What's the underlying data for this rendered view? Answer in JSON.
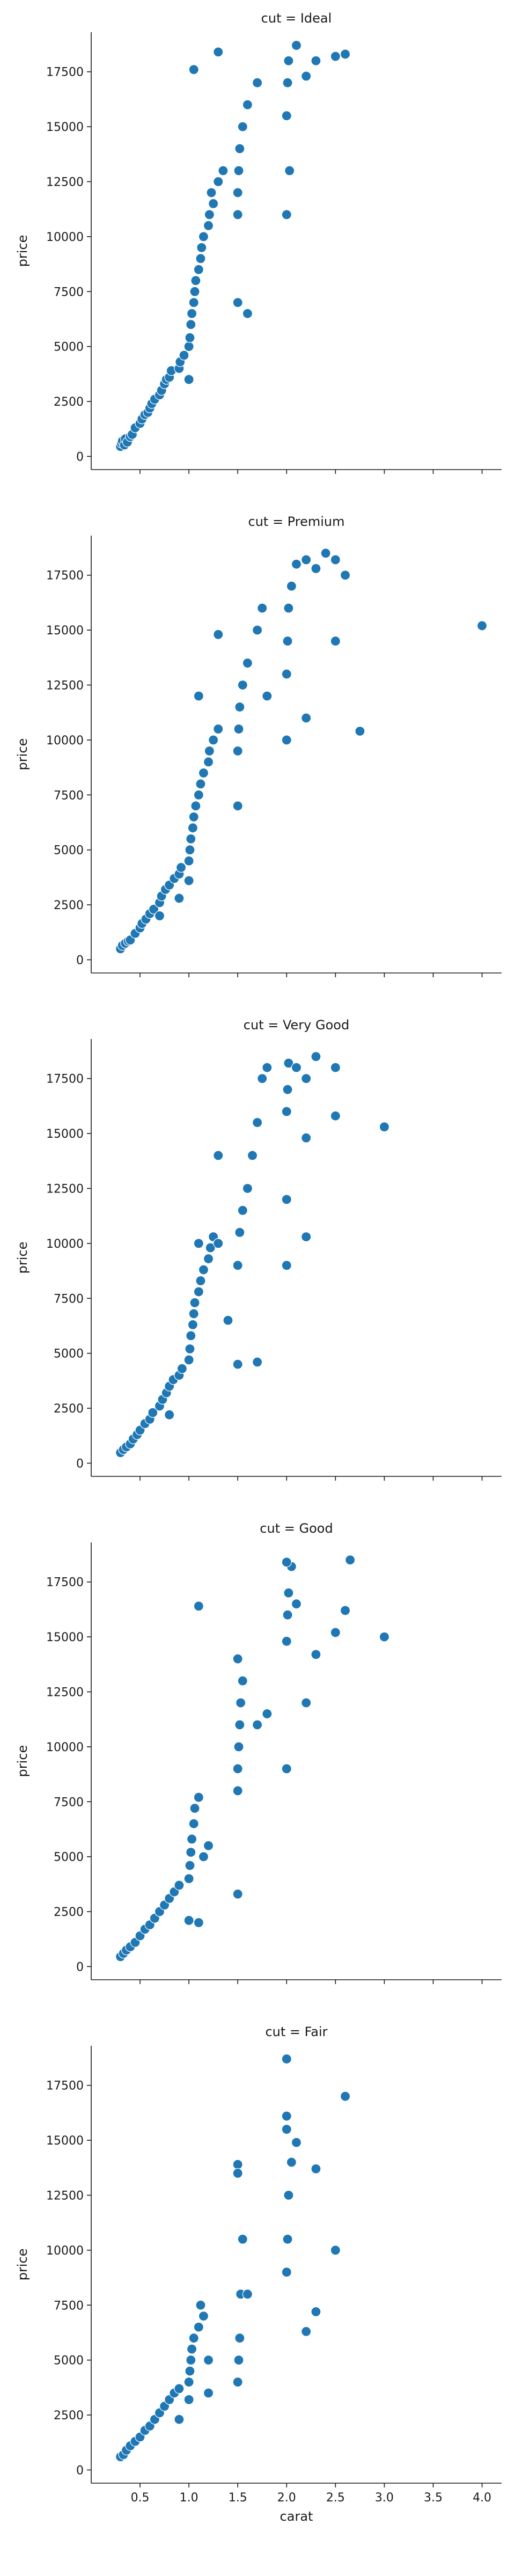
{
  "chart_data": {
    "type": "scatter",
    "facet_variable": "cut",
    "title_prefix": "cut = ",
    "xlabel": "carat",
    "ylabel": "price",
    "xlim": [
      0.0,
      4.2
    ],
    "ylim": [
      -600,
      19300
    ],
    "xticks": [
      0.5,
      1.0,
      1.5,
      2.0,
      2.5,
      3.0,
      3.5,
      4.0
    ],
    "xtick_labels": [
      "0.5",
      "1.0",
      "1.5",
      "2.0",
      "2.5",
      "3.0",
      "3.5",
      "4.0"
    ],
    "yticks": [
      0,
      2500,
      5000,
      7500,
      10000,
      12500,
      15000,
      17500
    ],
    "ytick_labels": [
      "0",
      "2500",
      "5000",
      "7500",
      "10000",
      "12500",
      "15000",
      "17500"
    ],
    "color": "#1f77b4",
    "shared_x_axis": true,
    "x_tick_labels_on_bottom_only": true,
    "grid": false,
    "facets": [
      {
        "title": "cut = Ideal",
        "points": [
          [
            0.3,
            450
          ],
          [
            0.31,
            600
          ],
          [
            0.32,
            700
          ],
          [
            0.34,
            520
          ],
          [
            0.35,
            800
          ],
          [
            0.37,
            650
          ],
          [
            0.4,
            900
          ],
          [
            0.42,
            1000
          ],
          [
            0.45,
            1300
          ],
          [
            0.5,
            1500
          ],
          [
            0.52,
            1700
          ],
          [
            0.55,
            1900
          ],
          [
            0.58,
            2000
          ],
          [
            0.6,
            2200
          ],
          [
            0.62,
            2400
          ],
          [
            0.65,
            2600
          ],
          [
            0.7,
            2800
          ],
          [
            0.72,
            3000
          ],
          [
            0.75,
            3300
          ],
          [
            0.77,
            3500
          ],
          [
            0.8,
            3600
          ],
          [
            0.82,
            3900
          ],
          [
            0.9,
            4000
          ],
          [
            0.91,
            4300
          ],
          [
            0.95,
            4600
          ],
          [
            1.0,
            5000
          ],
          [
            1.01,
            5400
          ],
          [
            1.02,
            6000
          ],
          [
            1.03,
            6500
          ],
          [
            1.05,
            7000
          ],
          [
            1.06,
            7500
          ],
          [
            1.07,
            8000
          ],
          [
            1.1,
            8500
          ],
          [
            1.12,
            9000
          ],
          [
            1.13,
            9500
          ],
          [
            1.15,
            10000
          ],
          [
            1.2,
            10500
          ],
          [
            1.21,
            11000
          ],
          [
            1.25,
            11500
          ],
          [
            1.23,
            12000
          ],
          [
            1.3,
            12500
          ],
          [
            1.35,
            13000
          ],
          [
            1.5,
            11000
          ],
          [
            1.5,
            12000
          ],
          [
            1.51,
            13000
          ],
          [
            1.52,
            14000
          ],
          [
            1.55,
            15000
          ],
          [
            1.6,
            16000
          ],
          [
            1.7,
            17000
          ],
          [
            1.05,
            17600
          ],
          [
            1.3,
            18400
          ],
          [
            2.0,
            15500
          ],
          [
            2.01,
            17000
          ],
          [
            2.02,
            18000
          ],
          [
            2.1,
            18700
          ],
          [
            2.2,
            17300
          ],
          [
            2.3,
            18000
          ],
          [
            2.5,
            18200
          ],
          [
            2.6,
            18300
          ],
          [
            2.0,
            11000
          ],
          [
            2.03,
            13000
          ],
          [
            1.5,
            7000
          ],
          [
            1.6,
            6500
          ],
          [
            1.0,
            3500
          ]
        ]
      },
      {
        "title": "cut = Premium",
        "points": [
          [
            0.3,
            500
          ],
          [
            0.32,
            650
          ],
          [
            0.35,
            750
          ],
          [
            0.38,
            850
          ],
          [
            0.4,
            900
          ],
          [
            0.45,
            1200
          ],
          [
            0.5,
            1450
          ],
          [
            0.52,
            1650
          ],
          [
            0.56,
            1850
          ],
          [
            0.6,
            2100
          ],
          [
            0.64,
            2300
          ],
          [
            0.7,
            2600
          ],
          [
            0.72,
            2900
          ],
          [
            0.76,
            3200
          ],
          [
            0.8,
            3400
          ],
          [
            0.85,
            3700
          ],
          [
            0.9,
            3900
          ],
          [
            0.92,
            4200
          ],
          [
            1.0,
            4500
          ],
          [
            1.01,
            5000
          ],
          [
            1.02,
            5500
          ],
          [
            1.04,
            6000
          ],
          [
            1.05,
            6500
          ],
          [
            1.07,
            7000
          ],
          [
            1.1,
            7500
          ],
          [
            1.12,
            8000
          ],
          [
            1.15,
            8500
          ],
          [
            1.2,
            9000
          ],
          [
            1.21,
            9500
          ],
          [
            1.25,
            10000
          ],
          [
            1.3,
            10500
          ],
          [
            1.5,
            9500
          ],
          [
            1.51,
            10500
          ],
          [
            1.52,
            11500
          ],
          [
            1.55,
            12500
          ],
          [
            1.6,
            13500
          ],
          [
            1.7,
            15000
          ],
          [
            1.75,
            16000
          ],
          [
            2.0,
            13000
          ],
          [
            2.01,
            14500
          ],
          [
            2.02,
            16000
          ],
          [
            2.05,
            17000
          ],
          [
            2.1,
            18000
          ],
          [
            2.2,
            18200
          ],
          [
            2.3,
            17800
          ],
          [
            2.4,
            18500
          ],
          [
            2.5,
            18200
          ],
          [
            2.6,
            17500
          ],
          [
            2.75,
            10400
          ],
          [
            4.0,
            15200
          ],
          [
            2.0,
            10000
          ],
          [
            2.2,
            11000
          ],
          [
            1.5,
            7000
          ],
          [
            1.3,
            14800
          ],
          [
            1.1,
            12000
          ],
          [
            1.0,
            3600
          ],
          [
            0.9,
            2800
          ],
          [
            0.7,
            2000
          ],
          [
            1.8,
            12000
          ],
          [
            2.5,
            14500
          ]
        ]
      },
      {
        "title": "cut = Very Good",
        "points": [
          [
            0.3,
            480
          ],
          [
            0.33,
            620
          ],
          [
            0.36,
            740
          ],
          [
            0.4,
            880
          ],
          [
            0.43,
            1100
          ],
          [
            0.47,
            1300
          ],
          [
            0.5,
            1500
          ],
          [
            0.55,
            1800
          ],
          [
            0.6,
            2000
          ],
          [
            0.63,
            2300
          ],
          [
            0.7,
            2600
          ],
          [
            0.73,
            2900
          ],
          [
            0.77,
            3200
          ],
          [
            0.8,
            3500
          ],
          [
            0.84,
            3800
          ],
          [
            0.9,
            4000
          ],
          [
            0.93,
            4300
          ],
          [
            1.0,
            4700
          ],
          [
            1.01,
            5200
          ],
          [
            1.02,
            5800
          ],
          [
            1.04,
            6300
          ],
          [
            1.05,
            6800
          ],
          [
            1.06,
            7300
          ],
          [
            1.1,
            7800
          ],
          [
            1.12,
            8300
          ],
          [
            1.15,
            8800
          ],
          [
            1.2,
            9300
          ],
          [
            1.22,
            9800
          ],
          [
            1.25,
            10300
          ],
          [
            1.3,
            10000
          ],
          [
            1.5,
            9000
          ],
          [
            1.52,
            10500
          ],
          [
            1.55,
            11500
          ],
          [
            1.6,
            12500
          ],
          [
            1.65,
            14000
          ],
          [
            1.7,
            15500
          ],
          [
            1.75,
            17500
          ],
          [
            1.8,
            18000
          ],
          [
            2.0,
            16000
          ],
          [
            2.01,
            17000
          ],
          [
            2.02,
            18200
          ],
          [
            2.1,
            18000
          ],
          [
            2.2,
            17500
          ],
          [
            2.3,
            18500
          ],
          [
            2.5,
            18000
          ],
          [
            3.0,
            15300
          ],
          [
            2.0,
            12000
          ],
          [
            2.0,
            9000
          ],
          [
            2.2,
            14800
          ],
          [
            2.5,
            15800
          ],
          [
            1.5,
            4500
          ],
          [
            1.7,
            4600
          ],
          [
            2.2,
            10300
          ],
          [
            1.3,
            14000
          ],
          [
            1.1,
            10000
          ],
          [
            0.8,
            2200
          ],
          [
            1.4,
            6500
          ]
        ]
      },
      {
        "title": "cut = Good",
        "points": [
          [
            0.3,
            450
          ],
          [
            0.33,
            600
          ],
          [
            0.36,
            750
          ],
          [
            0.4,
            900
          ],
          [
            0.45,
            1100
          ],
          [
            0.5,
            1400
          ],
          [
            0.55,
            1700
          ],
          [
            0.6,
            1900
          ],
          [
            0.65,
            2200
          ],
          [
            0.7,
            2500
          ],
          [
            0.75,
            2800
          ],
          [
            0.8,
            3100
          ],
          [
            0.85,
            3400
          ],
          [
            0.9,
            3700
          ],
          [
            1.0,
            4000
          ],
          [
            1.01,
            4600
          ],
          [
            1.02,
            5200
          ],
          [
            1.03,
            5800
          ],
          [
            1.05,
            6500
          ],
          [
            1.06,
            7200
          ],
          [
            1.1,
            7700
          ],
          [
            1.15,
            5000
          ],
          [
            1.2,
            5500
          ],
          [
            1.1,
            16400
          ],
          [
            1.5,
            9000
          ],
          [
            1.51,
            10000
          ],
          [
            1.52,
            11000
          ],
          [
            1.53,
            12000
          ],
          [
            1.55,
            13000
          ],
          [
            1.5,
            14000
          ],
          [
            1.5,
            8000
          ],
          [
            1.5,
            3300
          ],
          [
            2.0,
            14800
          ],
          [
            2.01,
            16000
          ],
          [
            2.02,
            17000
          ],
          [
            2.05,
            18200
          ],
          [
            2.0,
            18400
          ],
          [
            2.1,
            16500
          ],
          [
            2.3,
            14200
          ],
          [
            2.5,
            15200
          ],
          [
            2.6,
            16200
          ],
          [
            2.65,
            18500
          ],
          [
            3.0,
            15000
          ],
          [
            2.0,
            9000
          ],
          [
            2.2,
            12000
          ],
          [
            1.7,
            11000
          ],
          [
            1.8,
            11500
          ],
          [
            1.0,
            2100
          ],
          [
            1.1,
            2000
          ]
        ]
      },
      {
        "title": "cut = Fair",
        "points": [
          [
            0.3,
            600
          ],
          [
            0.33,
            700
          ],
          [
            0.36,
            900
          ],
          [
            0.4,
            1100
          ],
          [
            0.45,
            1300
          ],
          [
            0.5,
            1500
          ],
          [
            0.55,
            1800
          ],
          [
            0.6,
            2000
          ],
          [
            0.65,
            2300
          ],
          [
            0.7,
            2600
          ],
          [
            0.75,
            2900
          ],
          [
            0.8,
            3200
          ],
          [
            0.85,
            3500
          ],
          [
            0.9,
            3700
          ],
          [
            1.0,
            4000
          ],
          [
            1.01,
            4500
          ],
          [
            1.02,
            5000
          ],
          [
            1.03,
            5500
          ],
          [
            1.05,
            6000
          ],
          [
            1.1,
            6500
          ],
          [
            1.15,
            7000
          ],
          [
            1.12,
            7500
          ],
          [
            1.2,
            5000
          ],
          [
            1.5,
            4000
          ],
          [
            1.51,
            5000
          ],
          [
            1.52,
            6000
          ],
          [
            1.53,
            8000
          ],
          [
            1.55,
            10500
          ],
          [
            1.5,
            13900
          ],
          [
            1.6,
            8000
          ],
          [
            2.0,
            9000
          ],
          [
            2.01,
            10500
          ],
          [
            2.02,
            12500
          ],
          [
            2.05,
            14000
          ],
          [
            2.0,
            15500
          ],
          [
            2.0,
            16100
          ],
          [
            2.1,
            14900
          ],
          [
            2.0,
            18700
          ],
          [
            2.2,
            6300
          ],
          [
            2.3,
            7200
          ],
          [
            2.5,
            10000
          ],
          [
            2.6,
            17000
          ],
          [
            2.3,
            13700
          ],
          [
            1.5,
            13500
          ],
          [
            1.0,
            3200
          ],
          [
            0.9,
            2300
          ],
          [
            1.2,
            3500
          ]
        ]
      }
    ]
  }
}
